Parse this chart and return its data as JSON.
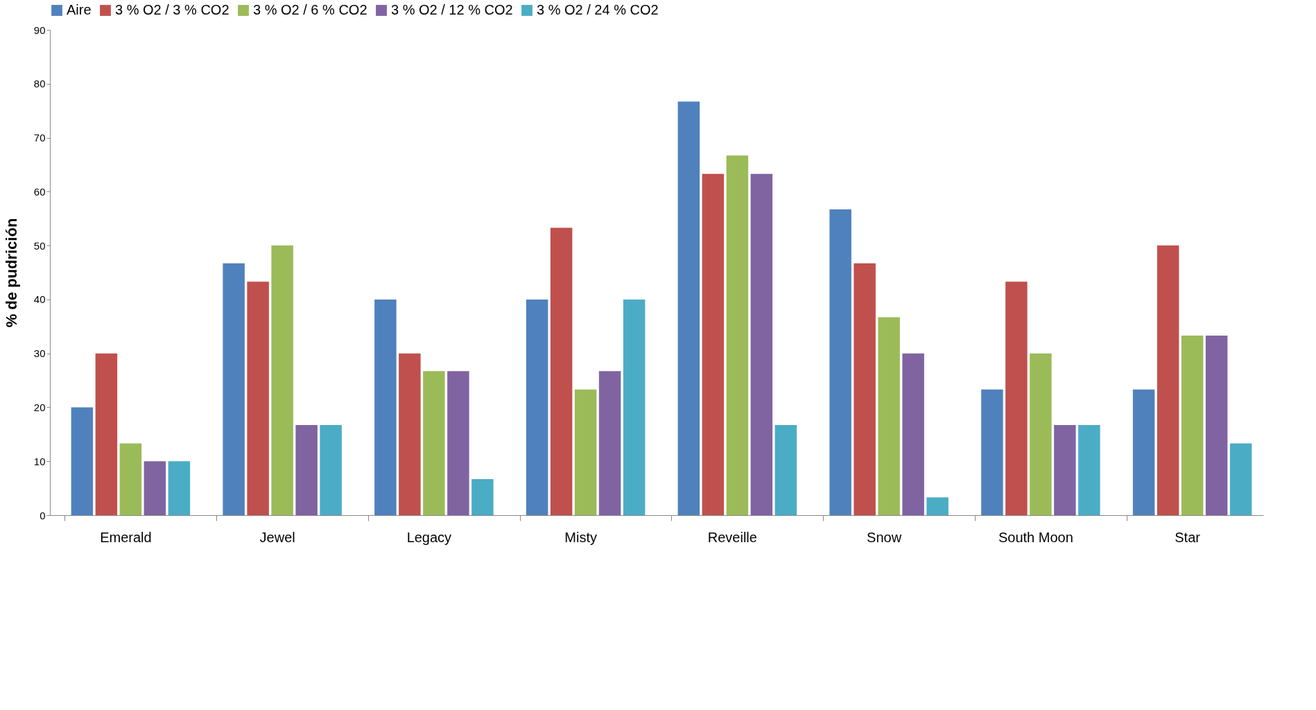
{
  "chart_data": {
    "type": "bar",
    "ylabel": "% de pudrición",
    "categories": [
      "Emerald",
      "Jewel",
      "Legacy",
      "Misty",
      "Reveille",
      "Snow",
      "South Moon",
      "Star"
    ],
    "series": [
      {
        "name": "Aire",
        "color": "#4f81bd",
        "values": [
          20,
          46.7,
          40,
          40,
          76.7,
          56.7,
          23.3,
          23.3
        ]
      },
      {
        "name": "3 % O2 / 3 % CO2",
        "color": "#c0504d",
        "values": [
          30,
          43.3,
          30,
          53.3,
          63.3,
          46.7,
          43.3,
          50
        ]
      },
      {
        "name": "3 % O2 / 6 % CO2",
        "color": "#9bbb59",
        "values": [
          13.3,
          50,
          26.7,
          23.3,
          66.7,
          36.7,
          30,
          33.3
        ]
      },
      {
        "name": "3 % O2 / 12 % CO2",
        "color": "#8064a2",
        "values": [
          10,
          16.7,
          26.7,
          26.7,
          63.3,
          30,
          16.7,
          33.3
        ]
      },
      {
        "name": "3 % O2 / 24 % CO2",
        "color": "#4bacc6",
        "values": [
          10,
          16.7,
          6.7,
          40,
          16.7,
          3.3,
          16.7,
          13.3
        ]
      }
    ],
    "ylim": [
      0,
      90
    ],
    "yticks": [
      0,
      10,
      20,
      30,
      40,
      50,
      60,
      70,
      80,
      90
    ],
    "grid": false,
    "legend": "top"
  }
}
